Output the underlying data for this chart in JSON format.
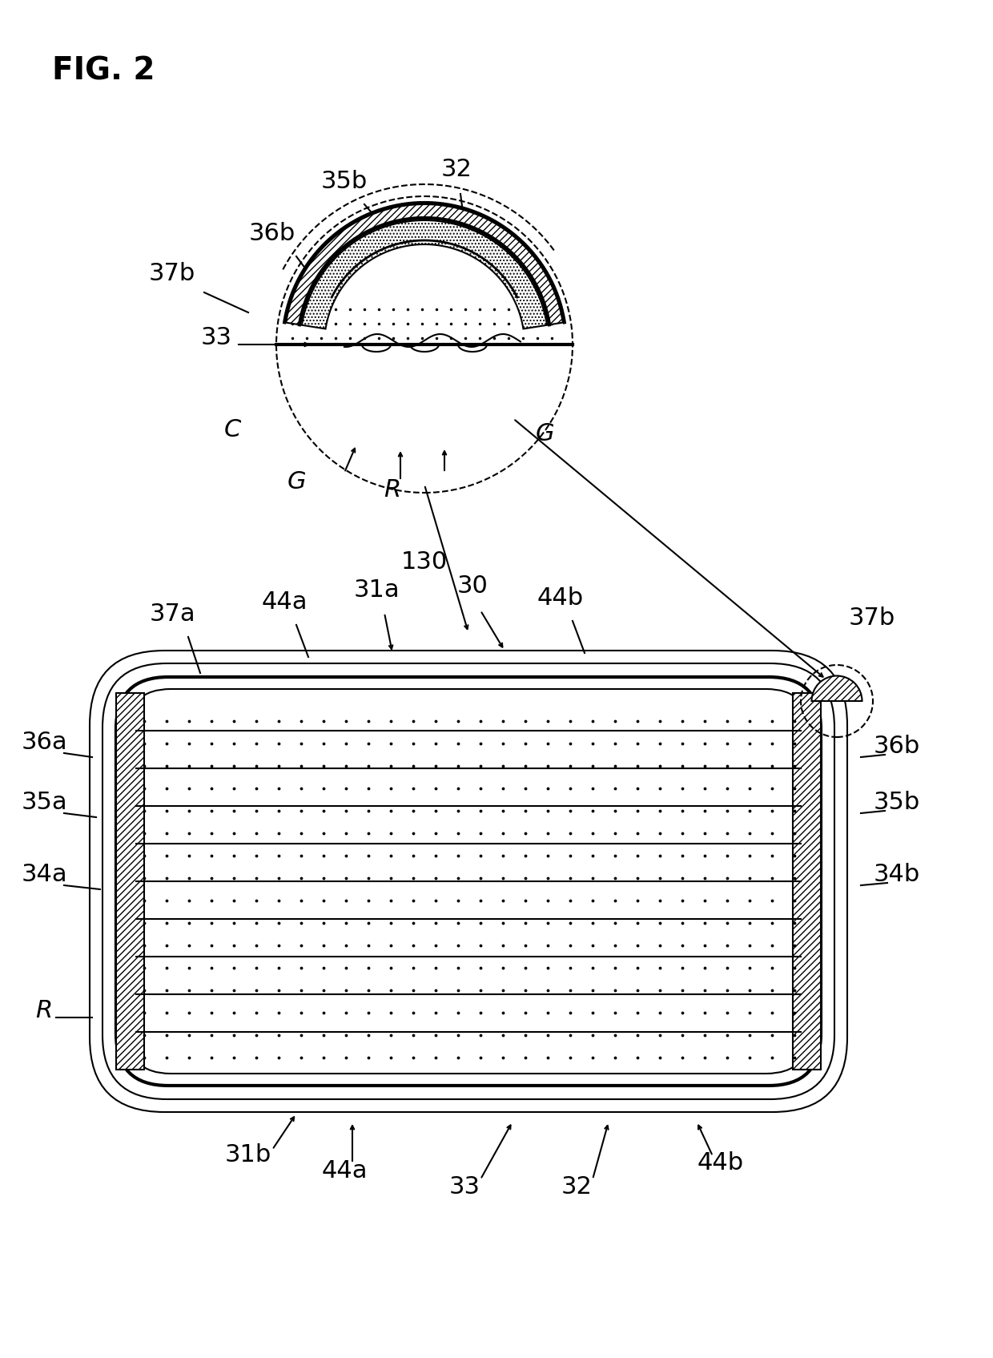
{
  "fig_label": "FIG. 2",
  "bg_color": "#ffffff",
  "line_color": "#000000",
  "hatch_diagonal": "////",
  "hatch_dot": "....",
  "labels": {
    "35b_top": "35b",
    "32_top": "32",
    "36b": "36b",
    "37b": "37b",
    "33_top": "33",
    "C": "C",
    "G_left": "G",
    "G_right": "G",
    "R_top": "R",
    "130": "130",
    "37a": "37a",
    "44a_top": "44a",
    "31a": "31a",
    "30": "30",
    "44b_top": "44b",
    "37b_right": "37b",
    "36a": "36a",
    "36b_right": "36b",
    "35a": "35a",
    "35b_right": "35b",
    "34a": "34a",
    "34b": "34b",
    "R_left": "R",
    "31b": "31b",
    "33_bot": "33",
    "32_bot": "32",
    "44a_bot": "44a",
    "44b_bot": "44b"
  }
}
